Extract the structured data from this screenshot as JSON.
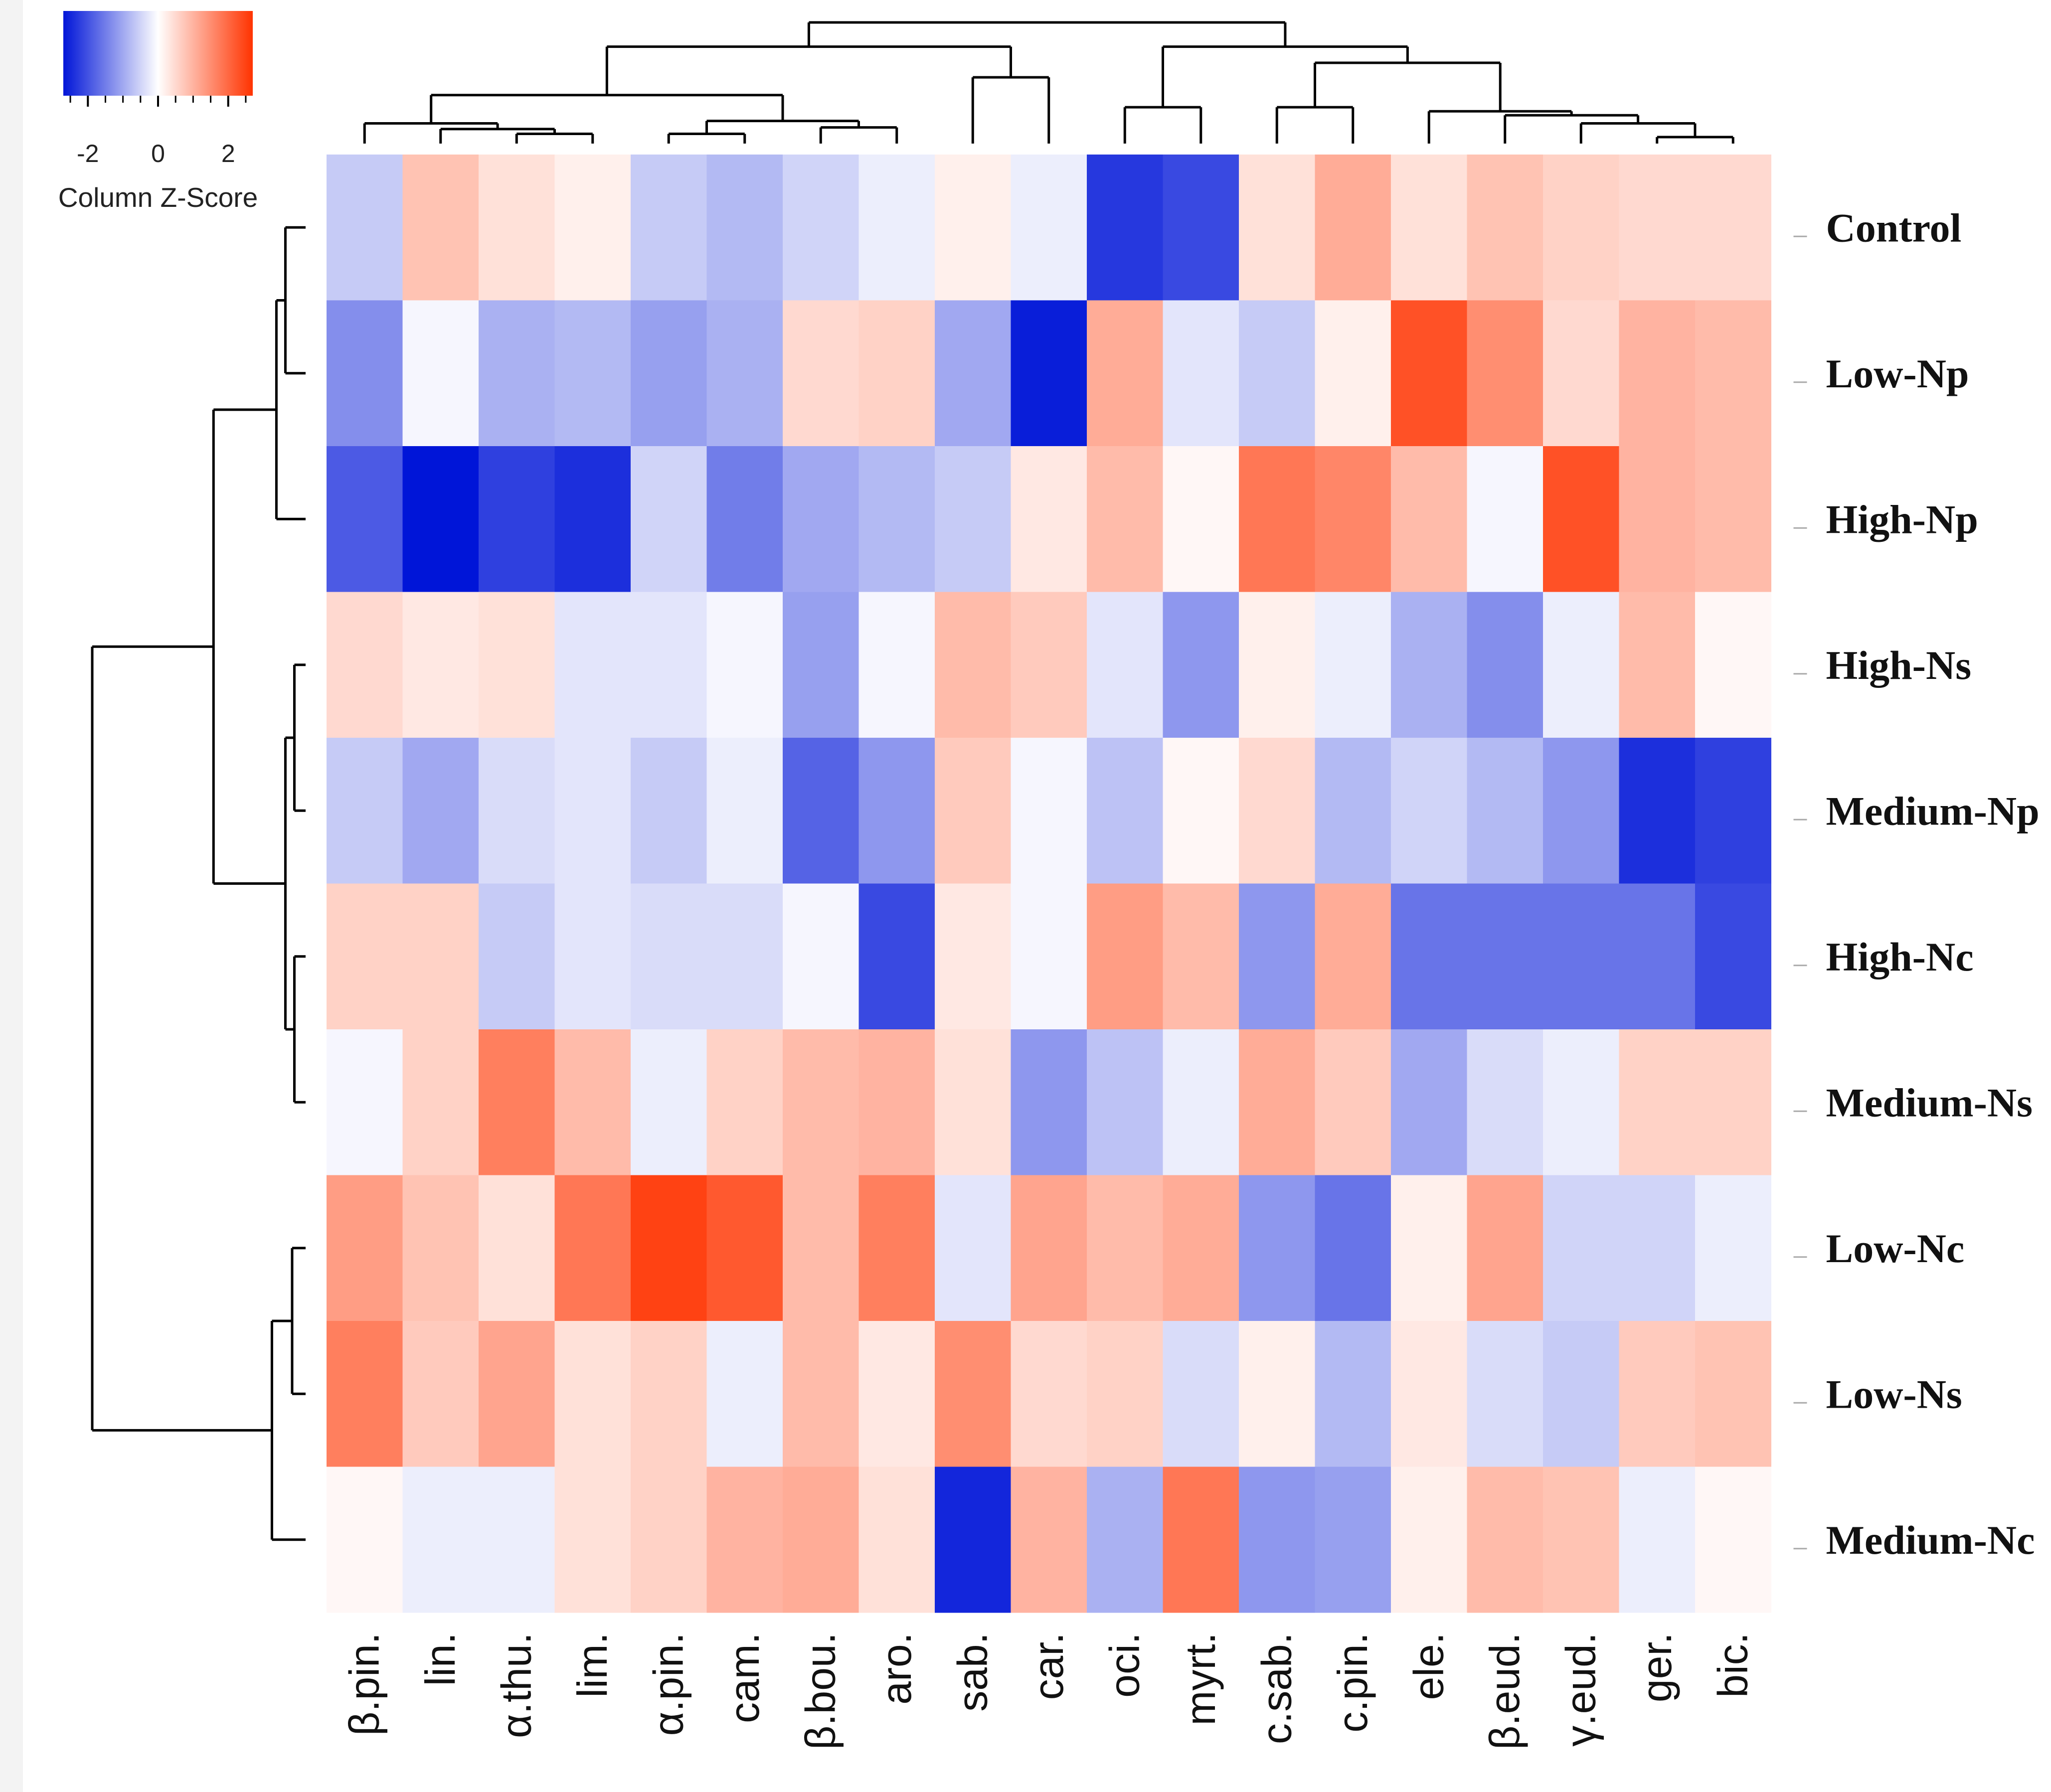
{
  "chart_data": {
    "type": "heatmap",
    "title": "",
    "rows": [
      "Control",
      "Low-Np",
      "High-Np",
      "High-Ns",
      "Medium-Np",
      "High-Nc",
      "Medium-Ns",
      "Low-Nc",
      "Low-Ns",
      "Medium-Nc"
    ],
    "columns": [
      "β.pin.",
      "lin.",
      "α.thu.",
      "lim.",
      "α.pin.",
      "cam.",
      "β.bou.",
      "aro.",
      "sab.",
      "car.",
      "oci.",
      "myrt.",
      "c.sab.",
      "c.pin.",
      "ele.",
      "β.eud.",
      "γ.eud.",
      "ger.",
      "bic."
    ],
    "values": [
      [
        -0.6,
        0.8,
        0.4,
        0.2,
        -0.6,
        -0.8,
        -0.5,
        -0.2,
        0.2,
        -0.2,
        -2.3,
        -2.1,
        0.4,
        1.1,
        0.4,
        0.8,
        0.6,
        0.5,
        0.5
      ],
      [
        -1.3,
        -0.1,
        -0.9,
        -0.8,
        -1.1,
        -0.9,
        0.5,
        0.6,
        -1.0,
        -2.6,
        1.1,
        -0.3,
        -0.6,
        0.2,
        2.3,
        1.5,
        0.5,
        1.0,
        0.9
      ],
      [
        -1.9,
        -2.7,
        -2.2,
        -2.4,
        -0.5,
        -1.5,
        -1.0,
        -0.8,
        -0.6,
        0.3,
        0.9,
        0.1,
        1.8,
        1.6,
        0.9,
        -0.1,
        2.3,
        1.0,
        0.9
      ],
      [
        0.5,
        0.3,
        0.4,
        -0.3,
        -0.3,
        -0.1,
        -1.1,
        -0.1,
        0.9,
        0.7,
        -0.3,
        -1.2,
        0.2,
        -0.2,
        -0.9,
        -1.3,
        -0.2,
        0.9,
        0.1
      ],
      [
        -0.6,
        -1.0,
        -0.4,
        -0.3,
        -0.6,
        -0.2,
        -1.8,
        -1.2,
        0.7,
        -0.1,
        -0.7,
        0.1,
        0.5,
        -0.8,
        -0.5,
        -0.8,
        -1.2,
        -2.4,
        -2.2
      ],
      [
        0.6,
        0.6,
        -0.6,
        -0.3,
        -0.4,
        -0.4,
        -0.1,
        -2.1,
        0.3,
        -0.1,
        1.3,
        0.9,
        -1.2,
        1.1,
        -1.6,
        -1.6,
        -1.6,
        -1.6,
        -2.1
      ],
      [
        -0.1,
        0.6,
        1.7,
        0.9,
        -0.2,
        0.6,
        0.9,
        1.0,
        0.4,
        -1.2,
        -0.7,
        -0.2,
        1.1,
        0.7,
        -1.0,
        -0.4,
        -0.2,
        0.6,
        0.6
      ],
      [
        1.3,
        0.8,
        0.4,
        1.8,
        2.5,
        2.2,
        0.9,
        1.7,
        -0.3,
        1.2,
        0.9,
        1.1,
        -1.2,
        -1.6,
        0.2,
        1.2,
        -0.5,
        -0.5,
        -0.2
      ],
      [
        1.7,
        0.7,
        1.2,
        0.4,
        0.6,
        -0.2,
        0.9,
        0.3,
        1.5,
        0.5,
        0.6,
        -0.4,
        0.2,
        -0.8,
        0.3,
        -0.4,
        -0.6,
        0.7,
        0.8
      ],
      [
        0.1,
        -0.2,
        -0.2,
        0.4,
        0.6,
        1.0,
        1.1,
        0.4,
        -2.5,
        1.0,
        -0.9,
        1.8,
        -1.2,
        -1.1,
        0.2,
        0.9,
        0.8,
        -0.2,
        0.1
      ]
    ],
    "color_key": {
      "title": "Column Z-Score",
      "ticks": [
        "-2",
        "0",
        "2"
      ],
      "tick_values": [
        -2,
        0,
        2
      ],
      "range": [
        -2.7,
        2.7
      ],
      "low_color": "#0015d8",
      "mid_color": "#ffffff",
      "high_color": "#ff3300"
    },
    "row_dendrogram": {
      "leaf_order": [
        "Control",
        "Low-Np",
        "High-Np",
        "High-Ns",
        "Medium-Np",
        "High-Nc",
        "Medium-Ns",
        "Low-Nc",
        "Low-Ns",
        "Medium-Nc"
      ],
      "merges": [
        [
          0,
          1,
          0.18
        ],
        [
          -1,
          2,
          0.26
        ],
        [
          3,
          4,
          0.1
        ],
        [
          5,
          6,
          0.1
        ],
        [
          -3,
          -4,
          0.18
        ],
        [
          -2,
          -5,
          0.82
        ],
        [
          7,
          8,
          0.12
        ],
        [
          -7,
          9,
          0.3
        ],
        [
          -6,
          -8,
          1.9
        ]
      ]
    },
    "column_dendrogram": {
      "leaf_order": [
        "β.pin.",
        "lin.",
        "α.thu.",
        "lim.",
        "α.pin.",
        "cam.",
        "β.bou.",
        "aro.",
        "sab.",
        "car.",
        "oci.",
        "myrt.",
        "c.sab.",
        "c.pin.",
        "ele.",
        "β.eud.",
        "γ.eud.",
        "ger.",
        "bic."
      ],
      "merges": [
        [
          2,
          3,
          0.12
        ],
        [
          1,
          -1,
          0.18
        ],
        [
          0,
          -2,
          0.25
        ],
        [
          4,
          5,
          0.12
        ],
        [
          6,
          7,
          0.2
        ],
        [
          -4,
          -5,
          0.28
        ],
        [
          -3,
          -6,
          0.6
        ],
        [
          8,
          9,
          0.82
        ],
        [
          -7,
          -8,
          1.2
        ],
        [
          10,
          11,
          0.45
        ],
        [
          12,
          13,
          0.45
        ],
        [
          17,
          18,
          0.08
        ],
        [
          16,
          -12,
          0.25
        ],
        [
          15,
          -13,
          0.35
        ],
        [
          14,
          -14,
          0.4
        ],
        [
          -11,
          -15,
          1.0
        ],
        [
          -10,
          -16,
          1.2
        ],
        [
          -9,
          -17,
          1.5
        ]
      ]
    }
  }
}
